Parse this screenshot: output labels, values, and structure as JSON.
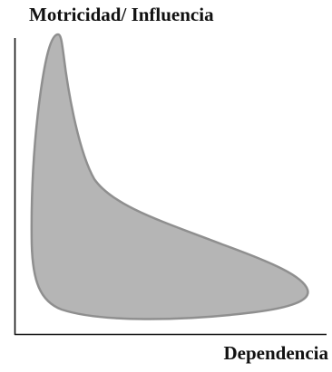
{
  "diagram": {
    "y_axis_label": "Motricidad/ Influencia",
    "x_axis_label": "Dependencia",
    "colors": {
      "shape_fill": "#b5b5b5",
      "shape_stroke": "#8f8f8f",
      "axis": "#111111",
      "text": "#111111"
    }
  }
}
